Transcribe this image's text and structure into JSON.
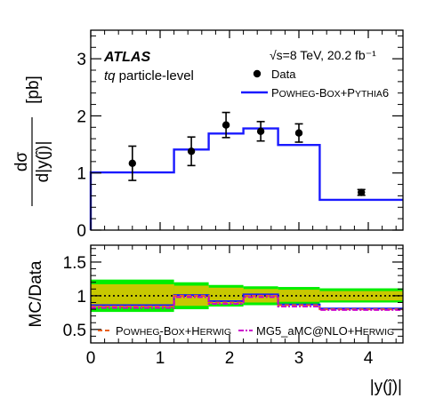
{
  "colors": {
    "prediction": "#1a1aff",
    "data": "#000000",
    "stat_band": "#c8c800",
    "total_band": "#00ee00",
    "ratio_powheg_herwig": "#e8601c",
    "ratio_mg5": "#cc00cc",
    "ratio_nominal": "#1a1aff"
  },
  "labels": {
    "atlas": "ATLAS",
    "energy_lumi": "√s=8 TeV, 20.2 fb⁻¹",
    "process_prefix": "tq",
    "process_suffix": " particle-level",
    "ylabel_num": "dσ",
    "ylabel_den": "d|y(ĵ)|",
    "ylabel_unit": "[pb]",
    "ratio_ylabel": "MC/Data",
    "xlabel": "|y(ĵ)|"
  },
  "legend": {
    "data": "Data",
    "powheg_pythia": {
      "p1": "P",
      "p2": "OWHEG",
      "p3": "-B",
      "p4": "OX",
      "p5": "+P",
      "p6": "YTHIA",
      "p7": "6"
    },
    "powheg_herwig": {
      "p1": "P",
      "p2": "OWHEG",
      "p3": "-B",
      "p4": "OX",
      "p5": "+H",
      "p6": "ERWIG"
    },
    "mg5": {
      "p1": "MG5_aMC@NLO+H",
      "p2": "ERWIG"
    }
  },
  "chart_data": [
    {
      "type": "line",
      "title": "",
      "xlabel": "|y(ĵ)|",
      "ylabel": "dσ/d|y(ĵ)| [pb]",
      "xlim": [
        0,
        4.5
      ],
      "ylim": [
        0,
        3.5
      ],
      "x_ticks": [
        0,
        1,
        2,
        3,
        4
      ],
      "y_ticks": [
        0,
        1,
        2,
        3
      ],
      "bin_edges": [
        0,
        1.2,
        1.7,
        2.2,
        2.7,
        3.3,
        4.5
      ],
      "legend_position": "top-right",
      "series": [
        {
          "name": "Data",
          "style": "points",
          "x": [
            0.6,
            1.45,
            1.95,
            2.45,
            3.0,
            3.9
          ],
          "y": [
            1.17,
            1.38,
            1.84,
            1.73,
            1.7,
            0.66
          ],
          "err": [
            0.3,
            0.25,
            0.22,
            0.17,
            0.16,
            0.05
          ]
        },
        {
          "name": "POWHEG-BOX+PYTHIA6",
          "style": "step",
          "values": [
            1.01,
            1.41,
            1.69,
            1.78,
            1.49,
            0.53
          ]
        }
      ]
    },
    {
      "type": "line",
      "title": "",
      "xlabel": "|y(ĵ)|",
      "ylabel": "MC/Data",
      "xlim": [
        0,
        4.5
      ],
      "ylim": [
        0.3,
        1.75
      ],
      "x_ticks": [
        0,
        1,
        2,
        3,
        4
      ],
      "y_ticks": [
        0.5,
        1,
        1.5
      ],
      "bin_edges": [
        0,
        1.2,
        1.7,
        2.2,
        2.7,
        3.3,
        4.5
      ],
      "reference_line": 1.0,
      "bands": {
        "total_uncertainty": {
          "low": [
            0.76,
            0.8,
            0.84,
            0.86,
            0.87,
            0.9
          ],
          "high": [
            1.24,
            1.2,
            1.16,
            1.14,
            1.13,
            1.11
          ]
        },
        "stat_uncertainty": {
          "low": [
            0.83,
            0.85,
            0.88,
            0.9,
            0.91,
            0.93
          ],
          "high": [
            1.17,
            1.15,
            1.12,
            1.1,
            1.09,
            1.07
          ]
        }
      },
      "series": [
        {
          "name": "POWHEG-BOX+PYTHIA6",
          "style": "step",
          "values": [
            0.86,
            1.01,
            0.92,
            1.02,
            0.87,
            0.81
          ]
        },
        {
          "name": "POWHEG-BOX+HERWIG",
          "style": "step-dashed",
          "values": [
            0.84,
            1.0,
            0.9,
            1.0,
            0.86,
            0.8
          ]
        },
        {
          "name": "MG5_aMC@NLO+HERWIG",
          "style": "step-dashdot",
          "values": [
            0.82,
            0.98,
            0.88,
            0.98,
            0.84,
            0.79
          ]
        }
      ]
    }
  ]
}
